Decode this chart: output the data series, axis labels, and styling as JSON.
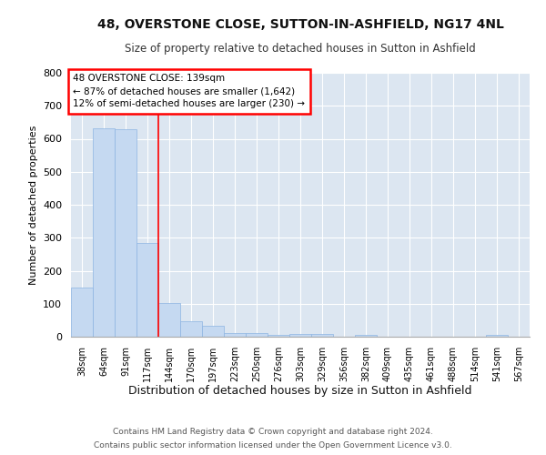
{
  "title1": "48, OVERSTONE CLOSE, SUTTON-IN-ASHFIELD, NG17 4NL",
  "title2": "Size of property relative to detached houses in Sutton in Ashfield",
  "xlabel": "Distribution of detached houses by size in Sutton in Ashfield",
  "ylabel": "Number of detached properties",
  "footer1": "Contains HM Land Registry data © Crown copyright and database right 2024.",
  "footer2": "Contains public sector information licensed under the Open Government Licence v3.0.",
  "categories": [
    "38sqm",
    "64sqm",
    "91sqm",
    "117sqm",
    "144sqm",
    "170sqm",
    "197sqm",
    "223sqm",
    "250sqm",
    "276sqm",
    "303sqm",
    "329sqm",
    "356sqm",
    "382sqm",
    "409sqm",
    "435sqm",
    "461sqm",
    "488sqm",
    "514sqm",
    "541sqm",
    "567sqm"
  ],
  "values": [
    150,
    632,
    628,
    285,
    102,
    48,
    32,
    12,
    10,
    5,
    8,
    8,
    0,
    5,
    0,
    0,
    0,
    0,
    0,
    5,
    0
  ],
  "bar_color": "#c5d9f1",
  "bar_edge_color": "#8db4e2",
  "background_color": "#dce6f1",
  "grid_color": "#ffffff",
  "annotation_text1": "48 OVERSTONE CLOSE: 139sqm",
  "annotation_text2": "← 87% of detached houses are smaller (1,642)",
  "annotation_text3": "12% of semi-detached houses are larger (230) →",
  "redline_x": 3.5,
  "ylim": [
    0,
    800
  ],
  "yticks": [
    0,
    100,
    200,
    300,
    400,
    500,
    600,
    700,
    800
  ]
}
